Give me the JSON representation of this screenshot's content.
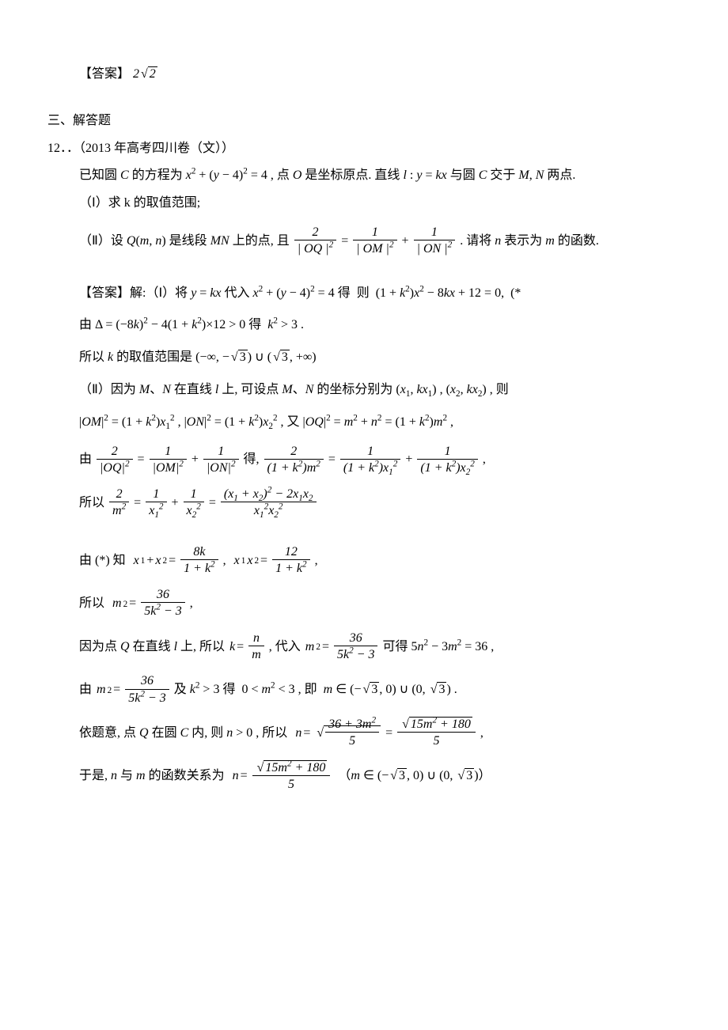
{
  "answer_top": {
    "label": "【答案】",
    "value": "2√2"
  },
  "section3_title": "三、解答题",
  "problem12": {
    "number": "12．．（2013 年高考四川卷（文））",
    "statement1": "已知圆 C 的方程为 x² + (y − 4)² = 4 , 点 O 是坐标原点. 直线 l : y = kx 与圆 C 交于 M, N 两点.",
    "part1": "（Ⅰ）求 k 的取值范围;",
    "part2_pre": "（Ⅱ）设 Q(m, n) 是线段 MN 上的点, 且 ",
    "part2_frac_eq": "2/|OQ|² = 1/|OM|² + 1/|ON|²",
    "part2_post": " . 请将 n 表示为 m 的函数."
  },
  "solution": {
    "label": "【答案】解:",
    "step1_pre": "（Ⅰ）将 y = kx 代入 x² + (y − 4)² = 4 得  则  (1 + k²)x² − 8kx + 12 = 0,  (*",
    "step2": "由 Δ = (−8k)² − 4(1 + k²)×12 > 0 得  k² > 3 .",
    "step3": "所以 k 的取值范围是 (−∞, −√3) ∪ (√3, +∞)",
    "step4": "（Ⅱ）因为 M、N 在直线 l 上, 可设点 M、N 的坐标分别为 (x₁, kx₁) , (x₂, kx₂) , 则",
    "step5": "|OM|² = (1 + k²)x₁² , |ON|² = (1 + k²)x₂² , 又 |OQ|² = m² + n² = (1 + k²)m² ,",
    "step6_pre": "由 ",
    "step6_eq1": "2/|OQ|² = 1/|OM|² + 1/|ON|²",
    "step6_mid": " 得, ",
    "step6_eq2": "2/((1+k²)m²) = 1/((1+k²)x₁²) + 1/((1+k²)x₂²)",
    "step6_post": " ,",
    "step7_pre": "所以 ",
    "step7_eq": "2/m² = 1/x₁² + 1/x₂² = ((x₁+x₂)² − 2x₁x₂) / (x₁²x₂²)",
    "step8_pre": "由 (*) 知  ",
    "step8_eq": "x₁ + x₂ = 8k/(1+k²) ,  x₁x₂ = 12/(1+k²)",
    "step8_post": " ,",
    "step9_pre": "所以  ",
    "step9_eq": "m² = 36/(5k² − 3)",
    "step9_post": " ,",
    "step10_pre": "因为点 Q 在直线 l 上, 所以 ",
    "step10_eq1": "k = n/m",
    "step10_mid": " , 代入 ",
    "step10_eq2": "m² = 36/(5k² − 3)",
    "step10_post": " 可得 5n² − 3m² = 36 ,",
    "step11_pre": "由 ",
    "step11_eq": "m² = 36/(5k² − 3)",
    "step11_mid": " 及 k² > 3 得  0 < m² < 3 , 即  m ∈ (−√3, 0) ∪ (0, √3) .",
    "step12_pre": "依题意, 点 Q 在圆 C 内, 则 n > 0 , 所以  ",
    "step12_eq": "n = √((36+3m²)/5) = √(15m²+180)/5",
    "step12_post": " ,",
    "step13_pre": "于是, n 与 m 的函数关系为  ",
    "step13_eq": "n = √(15m²+180)/5",
    "step13_post": "  （m ∈ (−√3, 0) ∪ (0, √3)）"
  },
  "colors": {
    "text": "#000000",
    "background": "#ffffff"
  },
  "fonts": {
    "body": "SimSun",
    "math": "Times New Roman",
    "base_size": 16
  }
}
